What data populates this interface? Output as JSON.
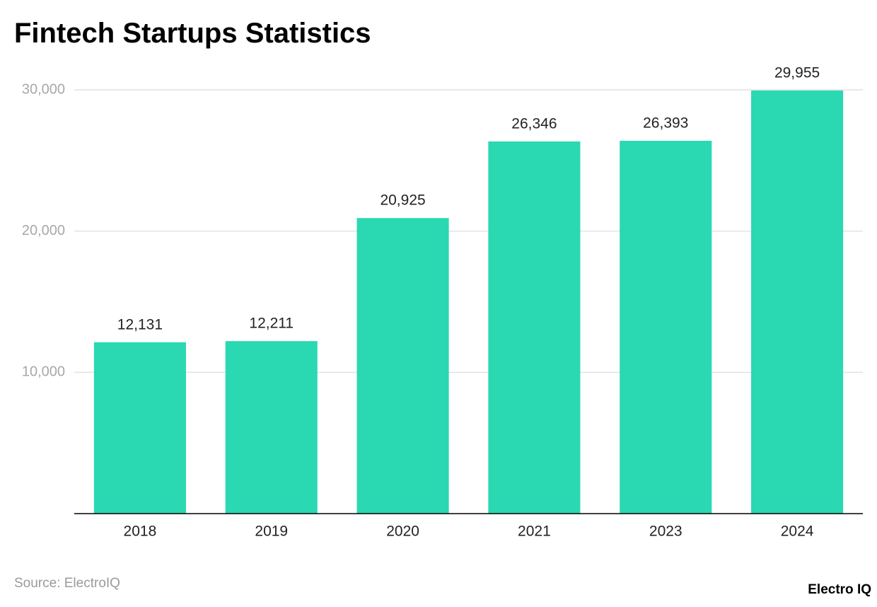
{
  "chart_data": {
    "type": "bar",
    "title": "Fintech Startups Statistics",
    "categories": [
      "2018",
      "2019",
      "2020",
      "2021",
      "2023",
      "2024"
    ],
    "values": [
      12131,
      12211,
      20925,
      26346,
      26393,
      29955
    ],
    "value_labels": [
      "12,131",
      "12,211",
      "20,925",
      "26,346",
      "26,393",
      "29,955"
    ],
    "color": "#2ad8b2",
    "ylim": [
      0,
      30000
    ],
    "yticks": [
      {
        "value": 10000,
        "label": "10,000"
      },
      {
        "value": 20000,
        "label": "20,000"
      },
      {
        "value": 30000,
        "label": "30,000"
      }
    ],
    "grid": true,
    "source": "Source: ElectroIQ",
    "brand": "Electro IQ"
  }
}
